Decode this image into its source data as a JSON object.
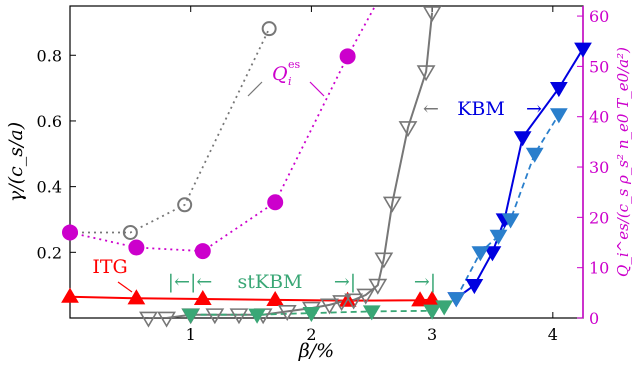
{
  "chart_data": {
    "type": "line",
    "xlabel": "β/%",
    "ylabel_left": "γ/(c_s/a)",
    "ylabel_right": "Q_i^es/(c_s ρ_s² n_e0 T_e0/a²)",
    "xlim": [
      0,
      4.25
    ],
    "ylim_left": [
      0,
      0.95
    ],
    "ylim_right": [
      0,
      62
    ],
    "x_ticks": [
      1,
      2,
      3,
      4
    ],
    "y_ticks_left": [
      0.2,
      0.4,
      0.6,
      0.8
    ],
    "y_ticks_right": [
      0,
      10,
      20,
      30,
      40,
      50,
      60
    ],
    "colors": {
      "itg": "#ff0000",
      "kbm": "#0000e0",
      "kbm_alt": "#2a7fcc",
      "stkbm": "#3aa776",
      "gray": "#777777",
      "magenta": "#cc00cc"
    },
    "series": [
      {
        "key": "itg_red",
        "axis": "left",
        "marker": "up-filled",
        "line": "solid",
        "color": "#ff0000",
        "x": [
          0,
          0.55,
          1.1,
          1.7,
          2.3,
          2.9,
          3.0
        ],
        "y": [
          0.065,
          0.06,
          0.058,
          0.055,
          0.053,
          0.054,
          0.056
        ]
      },
      {
        "key": "gray_triangles",
        "axis": "left",
        "marker": "down-open",
        "line": "solid",
        "color": "#777777",
        "x": [
          0.65,
          0.8,
          1.0,
          1.2,
          1.4,
          1.6,
          1.8,
          2.0,
          2.15,
          2.25,
          2.35,
          2.45,
          2.55,
          2.6,
          2.67,
          2.8,
          2.95,
          3.0
        ],
        "y": [
          0.0,
          0.0,
          0.01,
          0.01,
          0.01,
          0.01,
          0.02,
          0.03,
          0.04,
          0.05,
          0.055,
          0.07,
          0.1,
          0.18,
          0.35,
          0.58,
          0.75,
          0.93
        ]
      },
      {
        "key": "stkbm_green",
        "axis": "left",
        "marker": "down-filled",
        "line": "dashed",
        "color": "#3aa776",
        "x": [
          1.0,
          1.55,
          2.0,
          2.5,
          3.0,
          3.1
        ],
        "y": [
          0.01,
          0.01,
          0.015,
          0.02,
          0.022,
          0.035
        ]
      },
      {
        "key": "kbm_blue",
        "axis": "left",
        "marker": "down-filled",
        "line": "solid",
        "color": "#0000e0",
        "x": [
          3.2,
          3.35,
          3.5,
          3.6,
          3.75,
          4.05,
          4.25
        ],
        "y": [
          0.06,
          0.1,
          0.2,
          0.3,
          0.55,
          0.7,
          0.82
        ]
      },
      {
        "key": "kbm_lightblue",
        "axis": "left",
        "marker": "down-filled",
        "line": "dashed",
        "color": "#2a7fcc",
        "x": [
          3.2,
          3.4,
          3.55,
          3.65,
          3.85,
          4.05
        ],
        "y": [
          0.06,
          0.2,
          0.25,
          0.3,
          0.5,
          0.62
        ]
      },
      {
        "key": "q_gray",
        "axis": "right",
        "marker": "circle-open",
        "line": "dotted",
        "color": "#777777",
        "x": [
          0,
          0.5,
          0.95,
          1.65
        ],
        "y": [
          17,
          17,
          22.5,
          57.5
        ]
      },
      {
        "key": "q_magenta",
        "axis": "right",
        "marker": "circle-filled",
        "line": "dotted",
        "color": "#cc00cc",
        "x": [
          0,
          0.55,
          1.1,
          1.7,
          2.3,
          2.55
        ],
        "y": [
          17,
          14,
          13.3,
          23,
          52,
          63
        ]
      }
    ],
    "annotations": {
      "itg_label": "ITG",
      "stkbm_label": "stKBM",
      "kbm_label": "KBM",
      "q_label": "Q",
      "q_sup": "es",
      "q_sub": "i",
      "arrow_left": "←",
      "arrow_right": "→",
      "bar_left": "|←|←",
      "bar_right": "→|",
      "bar_mid": "→|"
    }
  }
}
